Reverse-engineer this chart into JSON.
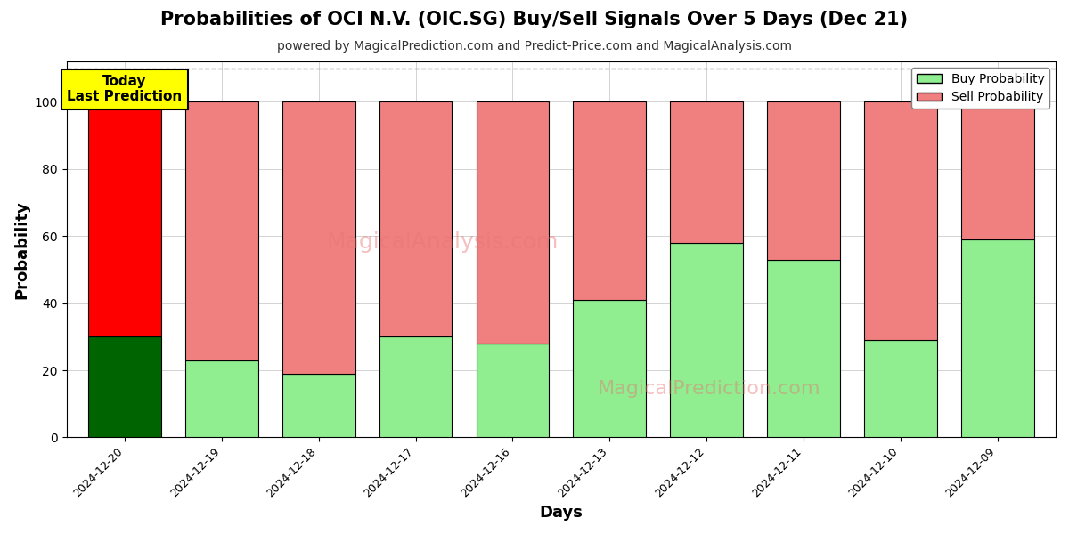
{
  "title": "Probabilities of OCI N.V. (OIC.SG) Buy/Sell Signals Over 5 Days (Dec 21)",
  "subtitle": "powered by MagicalPrediction.com and Predict-Price.com and MagicalAnalysis.com",
  "xlabel": "Days",
  "ylabel": "Probability",
  "categories": [
    "2024-12-20",
    "2024-12-19",
    "2024-12-18",
    "2024-12-17",
    "2024-12-16",
    "2024-12-13",
    "2024-12-12",
    "2024-12-11",
    "2024-12-10",
    "2024-12-09"
  ],
  "buy_values": [
    30,
    23,
    19,
    30,
    28,
    41,
    58,
    53,
    29,
    59
  ],
  "sell_values": [
    70,
    77,
    81,
    70,
    72,
    59,
    42,
    47,
    71,
    41
  ],
  "buy_color_today": "#006400",
  "sell_color_today": "#ff0000",
  "buy_color_rest": "#90ee90",
  "sell_color_rest": "#f08080",
  "bar_edge_color": "#000000",
  "ylim": [
    0,
    112
  ],
  "yticks": [
    0,
    20,
    40,
    60,
    80,
    100
  ],
  "dashed_line_y": 110,
  "legend_buy_label": "Buy Probability",
  "legend_sell_label": "Sell Probability",
  "today_label": "Today\nLast Prediction",
  "today_box_color": "#ffff00",
  "today_box_edge": "#000000",
  "figsize": [
    12.0,
    6.0
  ],
  "dpi": 100
}
